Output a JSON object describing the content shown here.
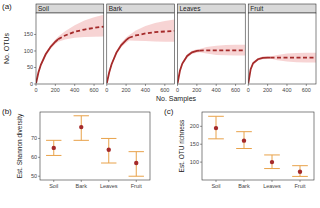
{
  "chart_data": [
    {
      "type": "line",
      "annotation": "(a)",
      "x_label": "No. Samples",
      "y_label": "No. OTUs",
      "xlim": [
        0,
        700
      ],
      "xticks": [
        0,
        200,
        400,
        600
      ],
      "ylim": [
        0,
        215
      ],
      "yticks": [
        0,
        50,
        100,
        150
      ],
      "grid": false,
      "facets": [
        {
          "title": "Soil",
          "series": [
            {
              "line_style": "solid",
              "color": "#a52a2a",
              "x": [
                1,
                25,
                50,
                100,
                150,
                200,
                230
              ],
              "values": [
                3,
                35,
                58,
                90,
                112,
                128,
                136
              ],
              "lower": [
                2,
                31,
                53,
                85,
                106,
                121,
                128
              ],
              "upper": [
                4,
                39,
                63,
                95,
                118,
                135,
                144
              ]
            },
            {
              "line_style": "dashed",
              "color": "#a52a2a",
              "x": [
                230,
                300,
                400,
                500,
                600,
                700
              ],
              "values": [
                136,
                147,
                158,
                165,
                170,
                174
              ],
              "lower": [
                128,
                135,
                140,
                142,
                143,
                144
              ],
              "upper": [
                144,
                160,
                178,
                192,
                202,
                210
              ]
            }
          ]
        },
        {
          "title": "Bark",
          "series": [
            {
              "line_style": "solid",
              "color": "#a52a2a",
              "x": [
                1,
                25,
                50,
                100,
                150,
                200,
                230
              ],
              "values": [
                3,
                35,
                60,
                95,
                118,
                133,
                140
              ],
              "lower": [
                2,
                31,
                55,
                89,
                111,
                125,
                132
              ],
              "upper": [
                4,
                39,
                65,
                101,
                125,
                141,
                148
              ]
            },
            {
              "line_style": "dashed",
              "color": "#a52a2a",
              "x": [
                230,
                300,
                400,
                500,
                600,
                700
              ],
              "values": [
                140,
                147,
                153,
                157,
                159,
                161
              ],
              "lower": [
                132,
                131,
                130,
                129,
                128,
                128
              ],
              "upper": [
                148,
                162,
                176,
                185,
                191,
                195
              ]
            }
          ]
        },
        {
          "title": "Leaves",
          "series": [
            {
              "line_style": "solid",
              "color": "#a52a2a",
              "x": [
                1,
                25,
                50,
                100,
                150,
                200,
                230
              ],
              "values": [
                3,
                40,
                62,
                85,
                96,
                100,
                101
              ],
              "lower": [
                2,
                36,
                58,
                80,
                91,
                95,
                96
              ],
              "upper": [
                4,
                44,
                66,
                90,
                101,
                105,
                106
              ]
            },
            {
              "line_style": "dashed",
              "color": "#a52a2a",
              "x": [
                230,
                300,
                400,
                500,
                600,
                700
              ],
              "values": [
                101,
                102,
                102,
                102,
                102,
                102
              ],
              "lower": [
                96,
                92,
                88,
                87,
                86,
                86
              ],
              "upper": [
                106,
                112,
                116,
                118,
                119,
                119
              ]
            }
          ]
        },
        {
          "title": "Fruit",
          "series": [
            {
              "line_style": "solid",
              "color": "#a52a2a",
              "x": [
                1,
                25,
                50,
                100,
                150,
                200,
                230
              ],
              "values": [
                3,
                45,
                63,
                75,
                79,
                80,
                80
              ],
              "lower": [
                2,
                41,
                59,
                71,
                75,
                76,
                77
              ],
              "upper": [
                4,
                49,
                67,
                79,
                83,
                84,
                83
              ]
            },
            {
              "line_style": "dashed",
              "color": "#a52a2a",
              "x": [
                230,
                300,
                400,
                500,
                600,
                700
              ],
              "values": [
                80,
                80,
                80,
                80,
                80,
                80
              ],
              "lower": [
                77,
                72,
                68,
                66,
                65,
                65
              ],
              "upper": [
                83,
                88,
                92,
                94,
                95,
                95
              ]
            }
          ]
        }
      ]
    },
    {
      "type": "errorbar",
      "annotation": "(b)",
      "y_label": "Est. Shannon diversity",
      "categories": [
        "Soil",
        "Bark",
        "Leaves",
        "Fruit"
      ],
      "values": [
        65,
        76,
        64,
        57
      ],
      "lower": [
        61,
        69,
        57,
        50
      ],
      "upper": [
        69,
        82,
        70,
        63
      ],
      "color": "#a52a2a",
      "marker": "circle",
      "ylim": [
        48,
        84
      ],
      "yticks": [
        50,
        60,
        70
      ],
      "grid": false
    },
    {
      "type": "errorbar",
      "annotation": "(c)",
      "y_label": "Est. OTU richness",
      "categories": [
        "Soil",
        "Bark",
        "Leaves",
        "Fruit"
      ],
      "values": [
        195,
        160,
        100,
        73
      ],
      "lower": [
        165,
        138,
        82,
        60
      ],
      "upper": [
        228,
        185,
        120,
        90
      ],
      "color": "#a52a2a",
      "marker": "circle",
      "ylim": [
        50,
        240
      ],
      "yticks": [
        100,
        150,
        200
      ],
      "grid": false
    }
  ]
}
